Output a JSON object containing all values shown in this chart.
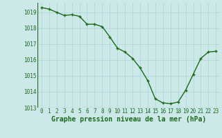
{
  "x": [
    0,
    1,
    2,
    3,
    4,
    5,
    6,
    7,
    8,
    9,
    10,
    11,
    12,
    13,
    14,
    15,
    16,
    17,
    18,
    19,
    20,
    21,
    22,
    23
  ],
  "y": [
    1019.3,
    1019.2,
    1019.0,
    1018.8,
    1018.85,
    1018.75,
    1018.25,
    1018.25,
    1018.1,
    1017.45,
    1016.75,
    1016.5,
    1016.1,
    1015.5,
    1014.7,
    1013.55,
    1013.3,
    1013.25,
    1013.35,
    1014.1,
    1015.1,
    1016.1,
    1016.5,
    1016.55
  ],
  "ylim": [
    1013.0,
    1019.6
  ],
  "yticks": [
    1013,
    1014,
    1015,
    1016,
    1017,
    1018,
    1019
  ],
  "xticks": [
    0,
    1,
    2,
    3,
    4,
    5,
    6,
    7,
    8,
    9,
    10,
    11,
    12,
    13,
    14,
    15,
    16,
    17,
    18,
    19,
    20,
    21,
    22,
    23
  ],
  "line_color": "#1a6b1a",
  "marker": "+",
  "marker_color": "#1a6b1a",
  "bg_color": "#cde8e8",
  "grid_color": "#aad4d4",
  "xlabel": "Graphe pression niveau de la mer (hPa)",
  "xlabel_color": "#1a6b1a",
  "xlabel_fontsize": 7,
  "tick_fontsize": 5.5,
  "linewidth": 1.0,
  "markersize": 3.5
}
